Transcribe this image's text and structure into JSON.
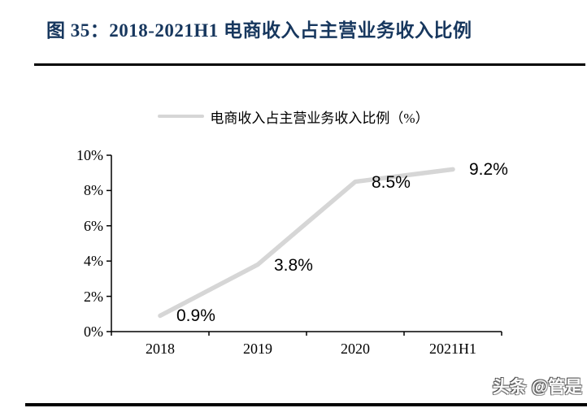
{
  "header": {
    "title": "图 35：2018-2021H1 电商收入占主营业务收入比例"
  },
  "legend": {
    "label": "电商收入占主营业务收入比例（%）"
  },
  "watermark": "头条 @管是",
  "colors": {
    "title": "#17375e",
    "series_line": "#d6d6d6",
    "axis": "#000000",
    "rule": "#000000"
  },
  "chart_data": {
    "type": "line",
    "title": "2018-2021H1 电商收入占主营业务收入比例",
    "categories": [
      "2018",
      "2019",
      "2020",
      "2021H1"
    ],
    "series": [
      {
        "name": "电商收入占主营业务收入比例（%）",
        "values": [
          0.9,
          3.8,
          8.5,
          9.2
        ]
      }
    ],
    "data_labels": [
      "0.9%",
      "3.8%",
      "8.5%",
      "9.2%"
    ],
    "xlabel": "",
    "ylabel": "",
    "ylim": [
      0,
      10
    ],
    "ytick_step": 2,
    "ytick_labels": [
      "0%",
      "2%",
      "4%",
      "6%",
      "8%",
      "10%"
    ],
    "grid": false,
    "legend_position": "top"
  }
}
